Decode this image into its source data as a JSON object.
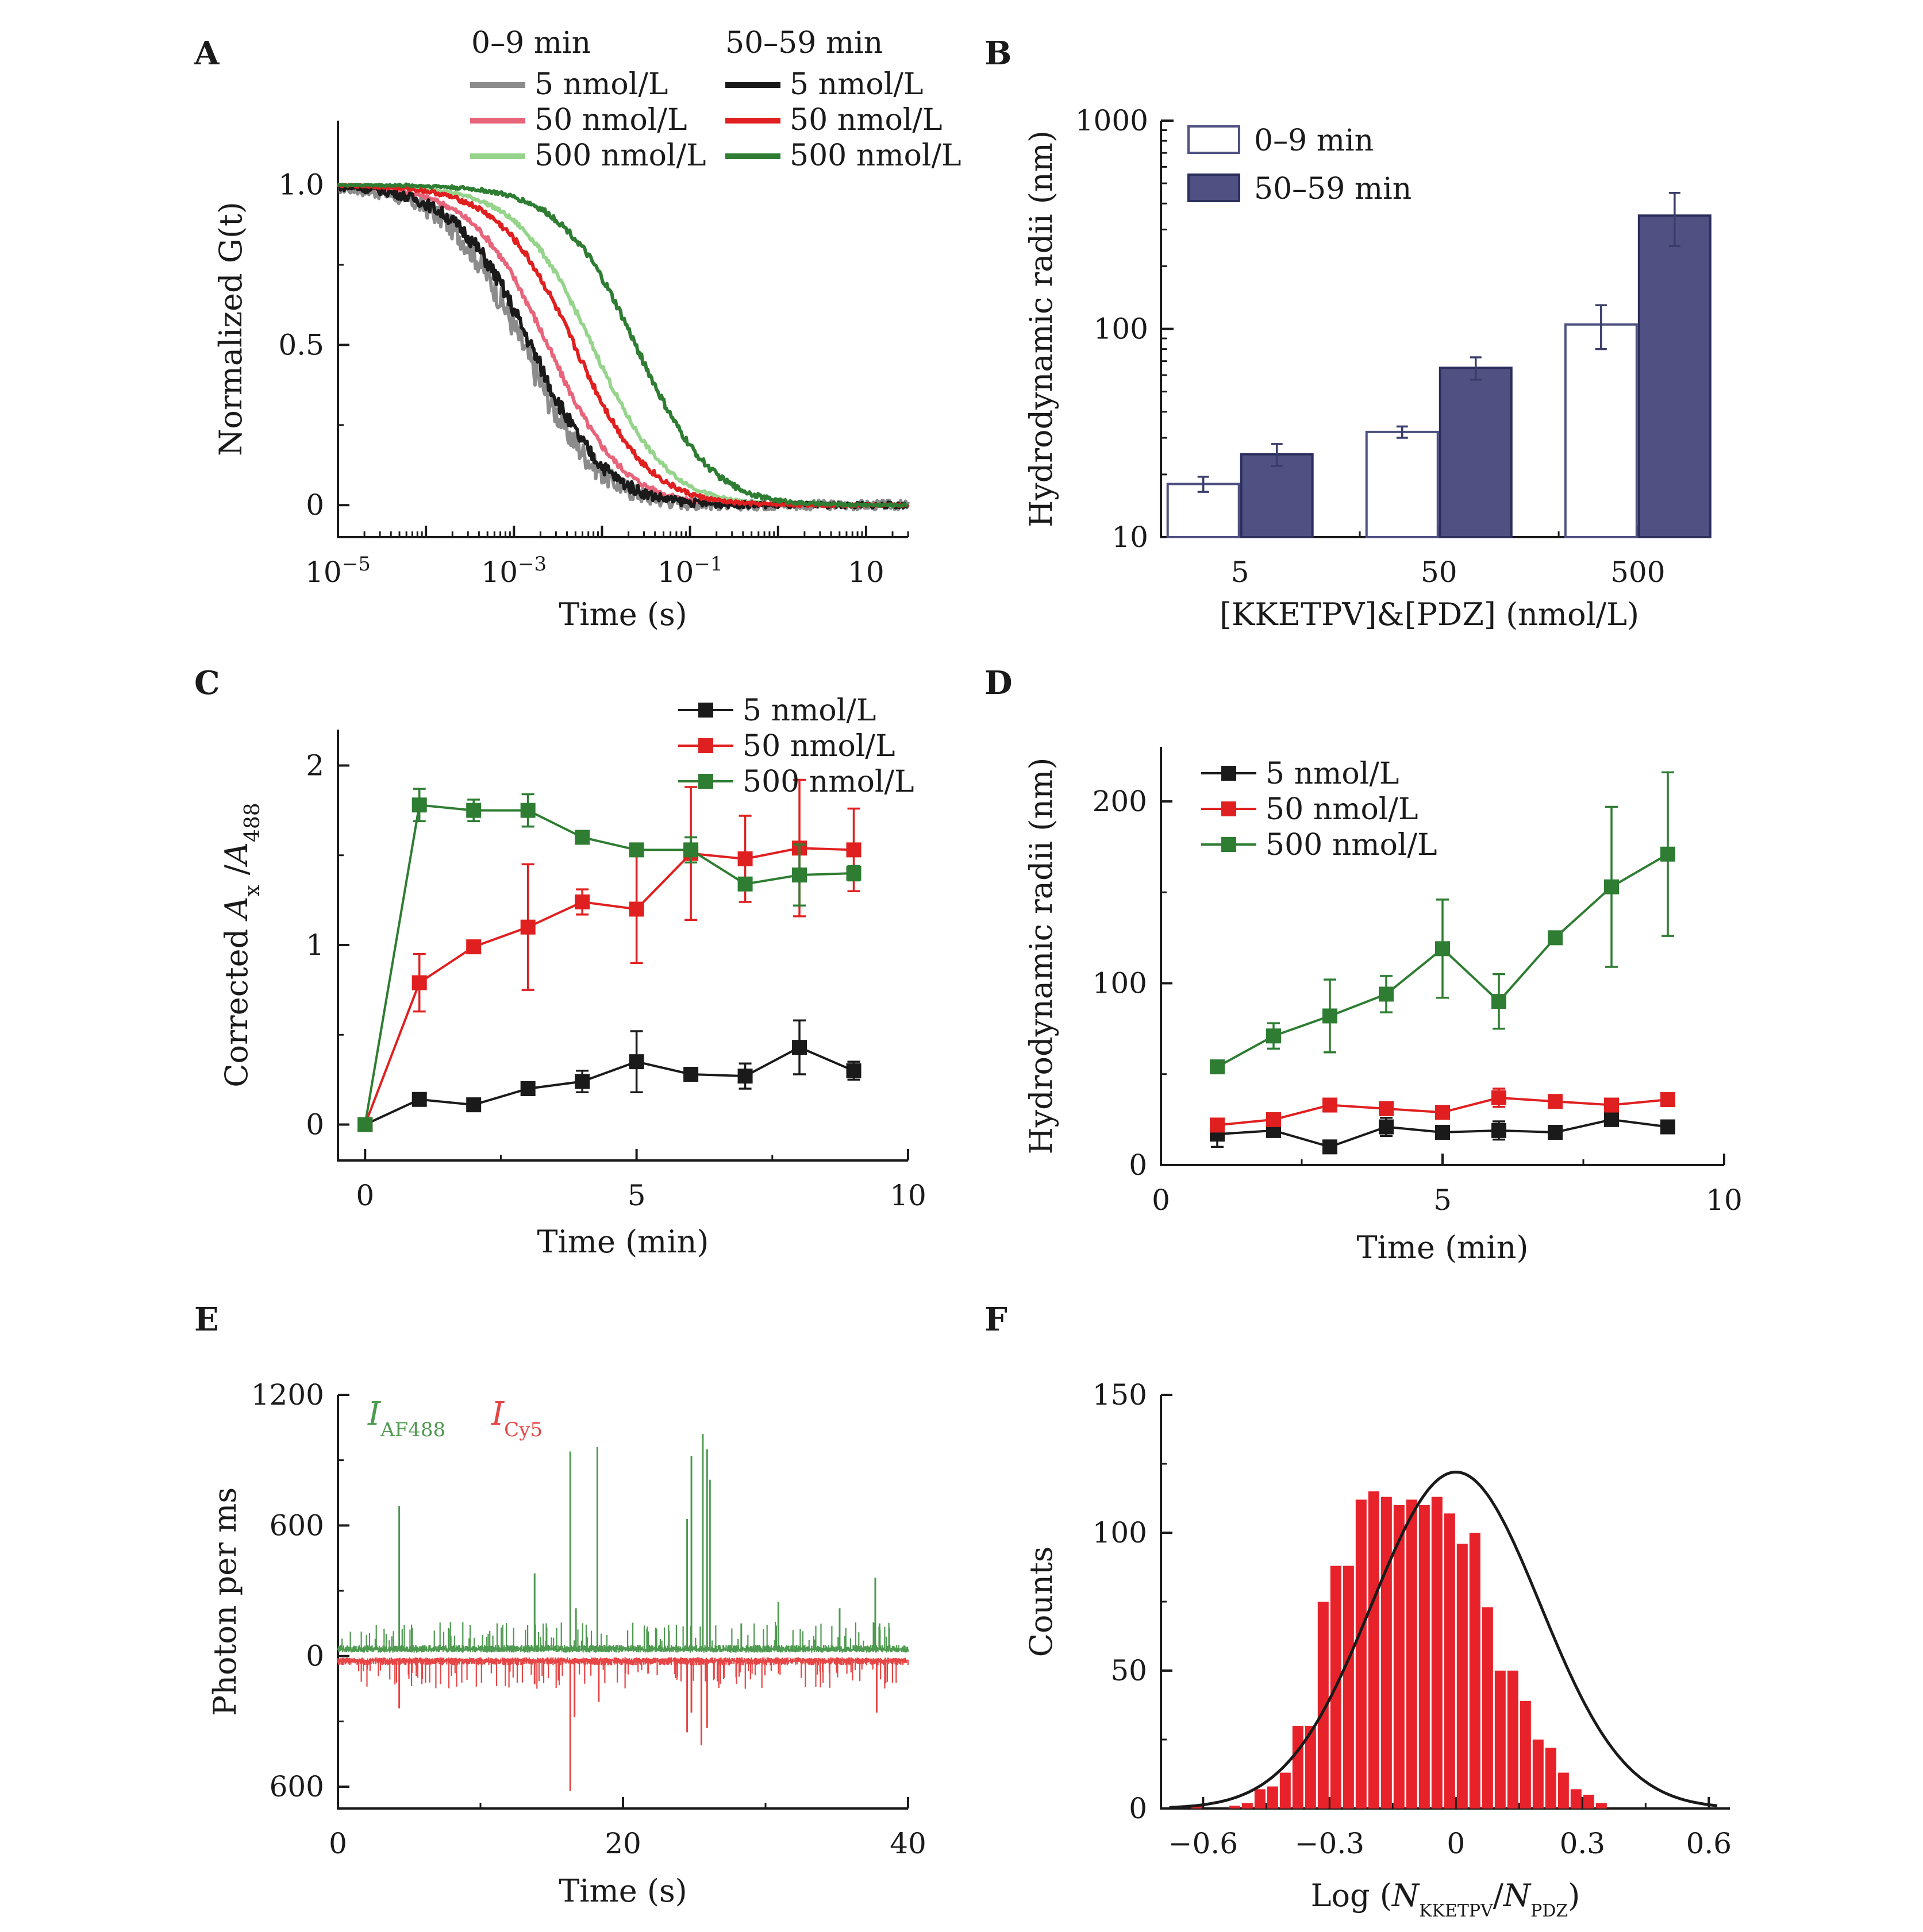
{
  "panels": {
    "A": "A",
    "B": "B",
    "C": "C",
    "D": "D",
    "E": "E",
    "F": "F"
  },
  "colors": {
    "gray": "#8c8c8c",
    "pink": "#e8647a",
    "lightgreen": "#96d48c",
    "black": "#1a1a1a",
    "red": "#e02020",
    "green": "#2e7d32",
    "navy": "#4e5182",
    "barred": "#e8222a",
    "cy5": "#e64545",
    "af488": "#4e9a50"
  },
  "chart_data": [
    {
      "panel": "A",
      "type": "line",
      "xlabel": "Time (s)",
      "ylabel": "Normalized G(t)",
      "xscale": "log",
      "xlim": [
        1e-05,
        30
      ],
      "ylim": [
        -0.1,
        1.2
      ],
      "xticks": [
        {
          "base": "10",
          "exp": "−5",
          "v": 1e-05
        },
        {
          "base": "10",
          "exp": "−3",
          "v": 0.001
        },
        {
          "base": "10",
          "exp": "−1",
          "v": 0.1
        },
        {
          "base": "10",
          "exp": "",
          "v": 10
        }
      ],
      "yticks": [
        "0",
        "0.5",
        "1.0"
      ],
      "legend_groups": [
        "0–9 min",
        "50–59 min"
      ],
      "series": [
        {
          "name": "5 nmol/L",
          "group": "0–9 min",
          "color": "#8c8c8c",
          "tau": 0.0013,
          "noise": 0.03
        },
        {
          "name": "50 nmol/L",
          "group": "0–9 min",
          "color": "#e8647a",
          "tau": 0.0025,
          "noise": 0.008
        },
        {
          "name": "500 nmol/L",
          "group": "0–9 min",
          "color": "#96d48c",
          "tau": 0.008,
          "noise": 0.006
        },
        {
          "name": "5 nmol/L",
          "group": "50–59 min",
          "color": "#1a1a1a",
          "tau": 0.0016,
          "noise": 0.018
        },
        {
          "name": "50 nmol/L",
          "group": "50–59 min",
          "color": "#e02020",
          "tau": 0.005,
          "noise": 0.008
        },
        {
          "name": "500 nmol/L",
          "group": "50–59 min",
          "color": "#2e7d32",
          "tau": 0.025,
          "noise": 0.008
        }
      ]
    },
    {
      "panel": "B",
      "type": "bar",
      "xlabel": "[KKETPV]&[PDZ] (nmol/L)",
      "ylabel": "Hydrodynamic radii (nm)",
      "yscale": "log",
      "ylim": [
        10,
        1000
      ],
      "yticks": [
        "10",
        "100",
        "1000"
      ],
      "categories": [
        "5",
        "50",
        "500"
      ],
      "series": [
        {
          "name": "0–9 min",
          "values": [
            18,
            32,
            105
          ],
          "errors": [
            1.5,
            2,
            25
          ],
          "fill": "#ffffff",
          "stroke": "#4e5182"
        },
        {
          "name": "50–59 min",
          "values": [
            25,
            65,
            350
          ],
          "errors": [
            3,
            8,
            100
          ],
          "fill": "#4e5182",
          "stroke": "#2c2f5c"
        }
      ]
    },
    {
      "panel": "C",
      "type": "line",
      "xlabel_pre": "Time (min)",
      "ylabel": {
        "pre": "Corrected ",
        "a": "A",
        "sub1": "x",
        "mid": " /",
        "b": "A",
        "sub2": "488"
      },
      "xlim": [
        -0.5,
        10
      ],
      "ylim": [
        -0.2,
        2.2
      ],
      "xticks": [
        "0",
        "5",
        "10"
      ],
      "yticks": [
        "0",
        "1",
        "2"
      ],
      "x": [
        0,
        1,
        2,
        3,
        4,
        5,
        6,
        7,
        8,
        9
      ],
      "series": [
        {
          "name": "5 nmol/L",
          "color": "#1a1a1a",
          "values": [
            0,
            0.14,
            0.11,
            0.2,
            0.24,
            0.35,
            0.28,
            0.27,
            0.43,
            0.3
          ],
          "errors": [
            0,
            0.02,
            0.02,
            0.02,
            0.06,
            0.17,
            0.02,
            0.07,
            0.15,
            0.05
          ]
        },
        {
          "name": "50 nmol/L",
          "color": "#e02020",
          "values": [
            0,
            0.79,
            0.99,
            1.1,
            1.24,
            1.2,
            1.51,
            1.48,
            1.54,
            1.53
          ],
          "errors": [
            0,
            0.16,
            0.02,
            0.35,
            0.07,
            0.3,
            0.37,
            0.24,
            0.38,
            0.23
          ]
        },
        {
          "name": "500 nmol/L",
          "color": "#2e7d32",
          "values": [
            0,
            1.78,
            1.75,
            1.75,
            1.6,
            1.53,
            1.53,
            1.34,
            1.39,
            1.4
          ],
          "errors": [
            0,
            0.09,
            0.06,
            0.09,
            0.02,
            0.03,
            0.07,
            0.02,
            0.17,
            0.04
          ]
        }
      ]
    },
    {
      "panel": "D",
      "type": "line",
      "xlabel": "Time (min)",
      "ylabel": "Hydrodynamic radii (nm)",
      "xlim": [
        0,
        10
      ],
      "ylim": [
        0,
        230
      ],
      "xticks": [
        "0",
        "5",
        "10"
      ],
      "yticks": [
        "0",
        "100",
        "200"
      ],
      "x": [
        1,
        2,
        3,
        4,
        5,
        6,
        7,
        8,
        9
      ],
      "series": [
        {
          "name": "5 nmol/L",
          "color": "#1a1a1a",
          "values": [
            17,
            19,
            10,
            21,
            18,
            19,
            18,
            25,
            21
          ],
          "errors": [
            7,
            2,
            2,
            5,
            2,
            5,
            3,
            2,
            2
          ]
        },
        {
          "name": "50 nmol/L",
          "color": "#e02020",
          "values": [
            22,
            25,
            33,
            31,
            29,
            37,
            35,
            33,
            36
          ],
          "errors": [
            3,
            2,
            2,
            2,
            2,
            5,
            2,
            2,
            2
          ]
        },
        {
          "name": "500 nmol/L",
          "color": "#2e7d32",
          "values": [
            54,
            71,
            82,
            94,
            119,
            90,
            125,
            153,
            171
          ],
          "errors": [
            2,
            7,
            20,
            10,
            27,
            15,
            3,
            44,
            45
          ]
        }
      ]
    },
    {
      "panel": "E",
      "type": "line",
      "xlabel": "Time (s)",
      "ylabel": "Photon per ms",
      "xlim": [
        0,
        40
      ],
      "ylim": [
        -700,
        1200
      ],
      "xticks": [
        "0",
        "20",
        "40"
      ],
      "yticks": [
        {
          "label": "1200",
          "v": 1200
        },
        {
          "label": "600",
          "v": 600
        },
        {
          "label": "0",
          "v": 0
        },
        {
          "label": "600",
          "v": -600
        }
      ],
      "series": [
        {
          "name": "AF488",
          "label_main": "I",
          "label_sub": "AF488",
          "color": "#4e9a50",
          "baseline": 30,
          "spikes": [
            [
              4.3,
              690
            ],
            [
              5.2,
              130
            ],
            [
              13.8,
              380
            ],
            [
              16.3,
              940
            ],
            [
              16.7,
              220
            ],
            [
              18.2,
              960
            ],
            [
              24.5,
              630
            ],
            [
              24.8,
              920
            ],
            [
              25.6,
              1020
            ],
            [
              25.9,
              950
            ],
            [
              26.1,
              810
            ],
            [
              28.3,
              150
            ],
            [
              30.9,
              250
            ],
            [
              35.2,
              220
            ],
            [
              37.7,
              360
            ],
            [
              38.0,
              150
            ]
          ]
        },
        {
          "name": "Cy5",
          "label_main": "I",
          "label_sub": "Cy5",
          "color": "#e64545",
          "baseline": -20,
          "spikes": [
            [
              4.3,
              -240
            ],
            [
              13.8,
              -130
            ],
            [
              16.3,
              -620
            ],
            [
              16.6,
              -280
            ],
            [
              18.3,
              -210
            ],
            [
              24.5,
              -350
            ],
            [
              24.8,
              -260
            ],
            [
              25.5,
              -410
            ],
            [
              25.9,
              -330
            ],
            [
              37.8,
              -260
            ]
          ]
        }
      ]
    },
    {
      "panel": "F",
      "type": "bar",
      "xlabel": {
        "pre": "Log (",
        "n1": "N",
        "sub1": "KKETPV",
        "slash": "/",
        "n2": "N",
        "sub2": "PDZ",
        "post": ")"
      },
      "ylabel": "Counts",
      "xlim": [
        -0.7,
        0.65
      ],
      "ylim": [
        0,
        150
      ],
      "xticks": [
        "−0.6",
        "−0.3",
        "0",
        "0.3",
        "0.6"
      ],
      "yticks": [
        "0",
        "50",
        "100",
        "150"
      ],
      "bin_width": 0.03,
      "bins_start": [
        -0.66,
        -0.63,
        -0.6,
        -0.57,
        -0.54,
        -0.51,
        -0.48,
        -0.45,
        -0.42,
        -0.39,
        -0.36,
        -0.33,
        -0.3,
        -0.27,
        -0.24,
        -0.21,
        -0.18,
        -0.15,
        -0.12,
        -0.09,
        -0.06,
        -0.03,
        0,
        0.03,
        0.06,
        0.09,
        0.12,
        0.15,
        0.18,
        0.21,
        0.24,
        0.27,
        0.3,
        0.33,
        0.36,
        0.39,
        0.42,
        0.45,
        0.48,
        0.51,
        0.54,
        0.57
      ],
      "counts": [
        0,
        1,
        0,
        0,
        1,
        2,
        7,
        8,
        13,
        30,
        30,
        75,
        88,
        88,
        112,
        115,
        113,
        110,
        112,
        110,
        113,
        107,
        96,
        100,
        73,
        50,
        50,
        39,
        25,
        22,
        13,
        7,
        5,
        2,
        0,
        0,
        0,
        0,
        0,
        0,
        0,
        0
      ],
      "fit": {
        "type": "gaussian",
        "amplitude": 122,
        "mean": 0.0,
        "sigma": 0.2,
        "color": "#1a1a1a"
      }
    }
  ]
}
